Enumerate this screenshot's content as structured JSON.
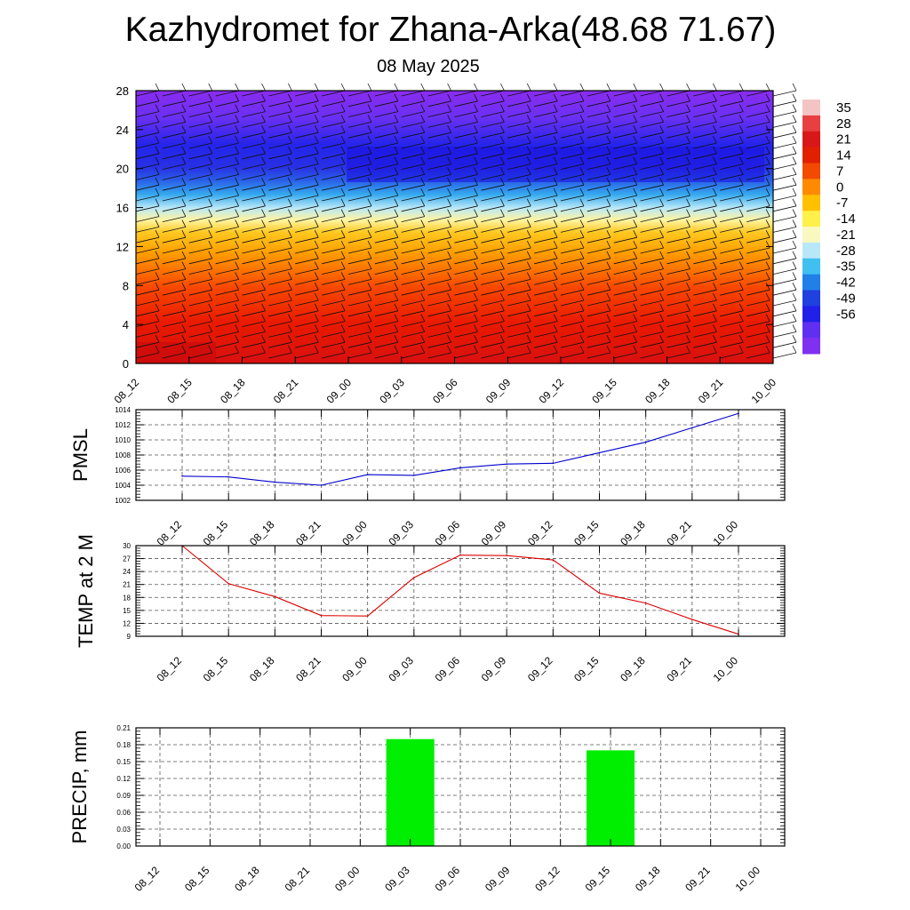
{
  "title": "Kazhydromet for Zhana-Arka(48.68 71.67)",
  "subtitle": "08 May 2025",
  "colors": {
    "pmsl_line": "#0000cc",
    "temp_line": "#dd0000",
    "precip_bar": "#00ee00"
  },
  "chart_data": [
    {
      "id": "upper-air",
      "type": "heatmap",
      "x": [
        "08_12",
        "08_15",
        "08_18",
        "08_21",
        "09_00",
        "09_03",
        "09_06",
        "09_09",
        "09_12",
        "09_15",
        "09_18",
        "09_21",
        "10_00"
      ],
      "ylim": [
        0,
        28
      ],
      "yticks": [
        "0",
        "4",
        "8",
        "12",
        "16",
        "20",
        "24",
        "28"
      ],
      "colorbar": {
        "labels": [
          "35",
          "28",
          "21",
          "14",
          "7",
          "0",
          "-7",
          "-14",
          "-21",
          "-28",
          "-35",
          "-42",
          "-49",
          "-56"
        ],
        "colors": [
          "#f4c4c4",
          "#e84040",
          "#d81818",
          "#e02000",
          "#f24a00",
          "#ff8a00",
          "#ffc000",
          "#fff04a",
          "#f8f8c0",
          "#b8e8f8",
          "#40c0f0",
          "#2080e8",
          "#2040e0",
          "#2020e8",
          "#6030f0",
          "#8030f0"
        ]
      }
    },
    {
      "id": "pmsl",
      "type": "line",
      "ylabel": "PMSL",
      "x": [
        "08_12",
        "08_15",
        "08_18",
        "08_21",
        "09_00",
        "09_03",
        "09_06",
        "09_09",
        "09_12",
        "09_15",
        "09_18",
        "09_21",
        "10_00"
      ],
      "values": [
        1005.2,
        1005.1,
        1004.4,
        1004.0,
        1005.4,
        1005.3,
        1006.3,
        1006.8,
        1006.9,
        1008.3,
        1009.7,
        1011.6,
        1013.5
      ],
      "ylim": [
        1002,
        1014
      ],
      "yticks": [
        "1002",
        "1004",
        "1006",
        "1008",
        "1010",
        "1012",
        "1014"
      ]
    },
    {
      "id": "temp",
      "type": "line",
      "ylabel": "TEMP at 2 M",
      "x": [
        "08_12",
        "08_15",
        "08_18",
        "08_21",
        "09_00",
        "09_03",
        "09_06",
        "09_09",
        "09_12",
        "09_15",
        "09_18",
        "09_21",
        "10_00"
      ],
      "values": [
        30.0,
        21.2,
        18.2,
        13.8,
        13.7,
        22.6,
        27.8,
        27.7,
        26.7,
        19.0,
        16.7,
        12.9,
        9.5
      ],
      "ylim": [
        9,
        30
      ],
      "yticks": [
        "9",
        "12",
        "15",
        "18",
        "21",
        "24",
        "27",
        "30"
      ]
    },
    {
      "id": "precip",
      "type": "bar",
      "ylabel": "PRECIP, mm",
      "x": [
        "08_12",
        "08_15",
        "08_18",
        "08_21",
        "09_00",
        "09_03",
        "09_06",
        "09_09",
        "09_12",
        "09_15",
        "09_18",
        "09_21",
        "10_00"
      ],
      "values": [
        0,
        0,
        0,
        0,
        0,
        0.19,
        0,
        0,
        0,
        0.17,
        0,
        0,
        0
      ],
      "ylim": [
        0,
        0.21
      ],
      "yticks": [
        "0.00",
        "0.03",
        "0.06",
        "0.09",
        "0.12",
        "0.15",
        "0.18",
        "0.21"
      ]
    }
  ]
}
